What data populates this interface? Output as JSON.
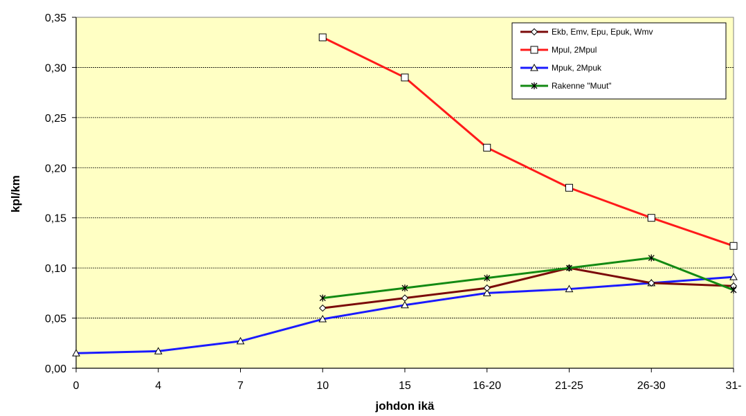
{
  "chart_data": {
    "type": "line",
    "categories": [
      "0",
      "4",
      "7",
      "10",
      "15",
      "16-20",
      "21-25",
      "26-30",
      "31-"
    ],
    "xlabel": "johdon ikä",
    "ylabel": "kpl/km",
    "ylim": [
      0,
      0.35
    ],
    "yticks": [
      "0,00",
      "0,05",
      "0,10",
      "0,15",
      "0,20",
      "0,25",
      "0,30",
      "0,35"
    ],
    "grid": true,
    "legend_position": "top-right",
    "plot_background": "#FFFFC4",
    "series": [
      {
        "name": "Ekb, Emv, Epu, Epuk, Wmv",
        "color": "#7B0A0A",
        "marker": "diamond",
        "values": [
          null,
          null,
          null,
          0.06,
          0.07,
          0.08,
          0.1,
          0.085,
          0.082
        ]
      },
      {
        "name": "Mpul, 2Mpul",
        "color": "#FF1A1A",
        "marker": "square",
        "values": [
          null,
          null,
          null,
          0.33,
          0.29,
          0.22,
          0.18,
          0.15,
          0.122
        ]
      },
      {
        "name": "Mpuk, 2Mpuk",
        "color": "#1A1AFF",
        "marker": "triangle",
        "values": [
          0.015,
          0.017,
          0.027,
          0.049,
          0.063,
          0.075,
          0.079,
          0.085,
          0.091
        ]
      },
      {
        "name": "Rakenne \"Muut\"",
        "color": "#138A13",
        "marker": "star",
        "values": [
          null,
          null,
          null,
          0.07,
          0.08,
          0.09,
          0.1,
          0.11,
          0.078
        ]
      }
    ]
  }
}
